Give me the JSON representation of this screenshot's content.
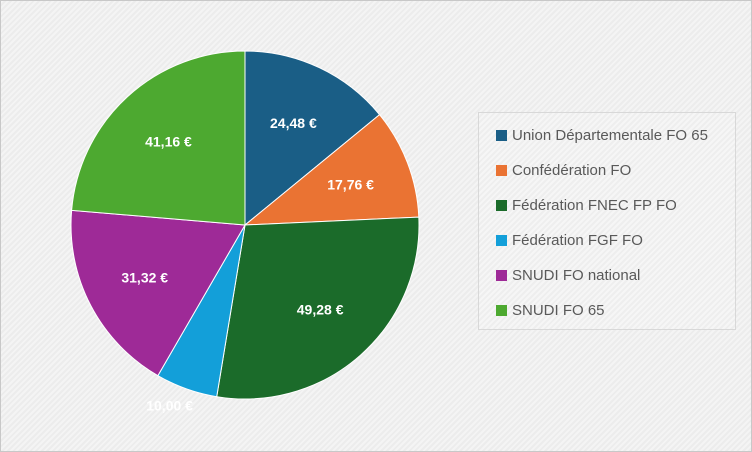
{
  "chart_data": {
    "type": "pie",
    "title": "",
    "categories": [
      "Union Départementale FO 65",
      "Confédération FO",
      "Fédération FNEC FP FO",
      "Fédération FGF FO",
      "SNUDI FO national",
      "SNUDI FO 65"
    ],
    "values": [
      24.48,
      17.76,
      49.28,
      10.0,
      31.32,
      41.16
    ],
    "data_labels": [
      "24,48 €",
      "17,76 €",
      "49,28 €",
      "10,00 €",
      "31,32 €",
      "41,16 €"
    ],
    "colors": [
      "#1a5e86",
      "#ea7333",
      "#1b6b2a",
      "#139fd9",
      "#9e2a97",
      "#4da930"
    ],
    "legend_position": "right",
    "start_angle_deg": 0,
    "direction": "clockwise"
  }
}
